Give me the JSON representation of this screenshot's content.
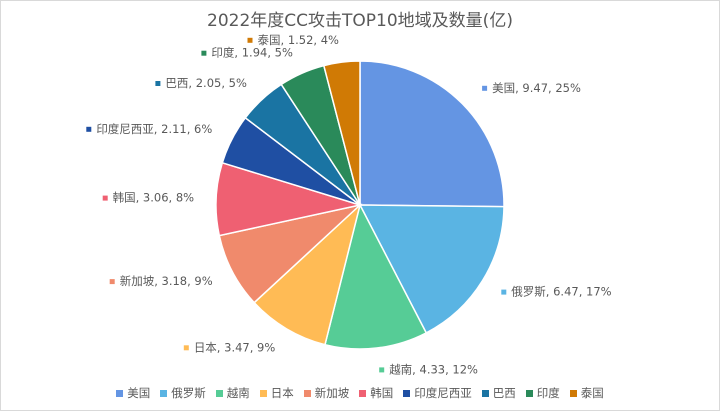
{
  "chart_data": {
    "type": "pie",
    "title": "2022年度CC攻击TOP10地域及数量(亿)",
    "categories": [
      "美国",
      "俄罗斯",
      "越南",
      "日本",
      "新加坡",
      "韩国",
      "印度尼西亚",
      "巴西",
      "印度",
      "泰国"
    ],
    "values": [
      9.47,
      6.47,
      4.33,
      3.47,
      3.18,
      3.06,
      2.11,
      2.05,
      1.94,
      1.52
    ],
    "data_labels": [
      "美国, 9.47, 25%",
      "俄罗斯, 6.47, 17%",
      "越南, 4.33, 12%",
      "日本, 3.47, 9%",
      "新加坡, 3.18, 9%",
      "韩国, 3.06, 8%",
      "印度尼西亚, 2.11, 6%",
      "巴西, 2.05, 5%",
      "印度, 1.94, 5%",
      "泰国, 1.52, 4%"
    ],
    "colors": [
      "#6495e3",
      "#5ab4e3",
      "#56cc96",
      "#ffbb55",
      "#f08a6c",
      "#ef6072",
      "#1f4fa3",
      "#1a74a3",
      "#2a8a5a",
      "#d07a05"
    ],
    "legend_position": "bottom"
  }
}
